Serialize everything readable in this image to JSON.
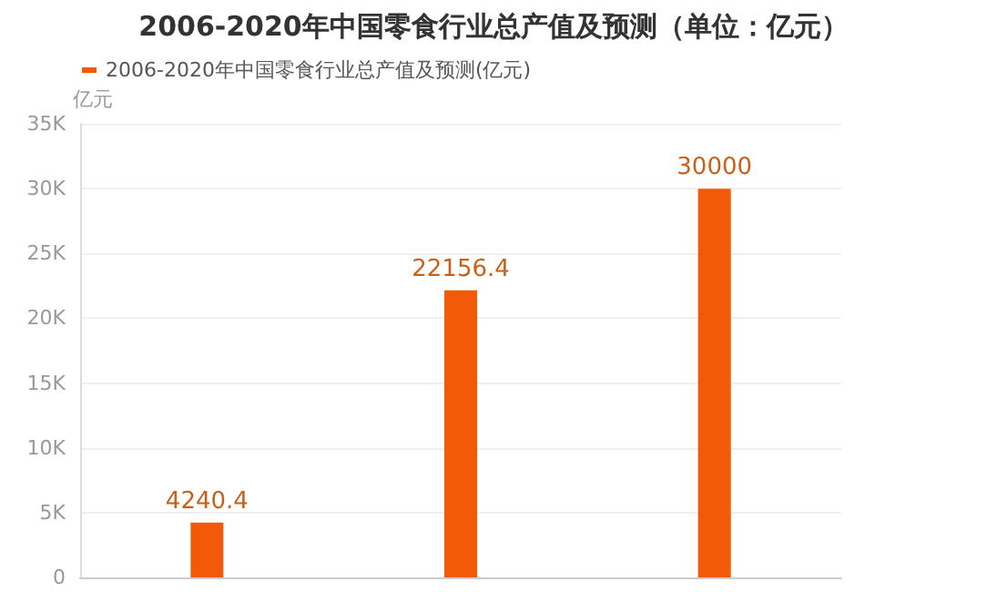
{
  "chart_data": {
    "type": "bar",
    "title": "2006-2020年中国零食行业总产值及预测（单位：亿元）",
    "ylabel": "亿元",
    "categories": [
      null,
      null,
      null
    ],
    "series": [
      {
        "name": "2006-2020年中国零食行业总产值及预测(亿元)",
        "color": "#f25a0a",
        "values": [
          4240.4,
          22156.4,
          30000
        ]
      }
    ],
    "ylim": [
      0,
      35000
    ],
    "yticks": [
      {
        "value": 0,
        "label": "0"
      },
      {
        "value": 5000,
        "label": "5K"
      },
      {
        "value": 10000,
        "label": "10K"
      },
      {
        "value": 15000,
        "label": "15K"
      },
      {
        "value": 20000,
        "label": "20K"
      },
      {
        "value": 25000,
        "label": "25K"
      },
      {
        "value": 30000,
        "label": "30K"
      },
      {
        "value": 35000,
        "label": "35K"
      }
    ],
    "grid": "y",
    "legend": "top left",
    "data_labels": true
  }
}
